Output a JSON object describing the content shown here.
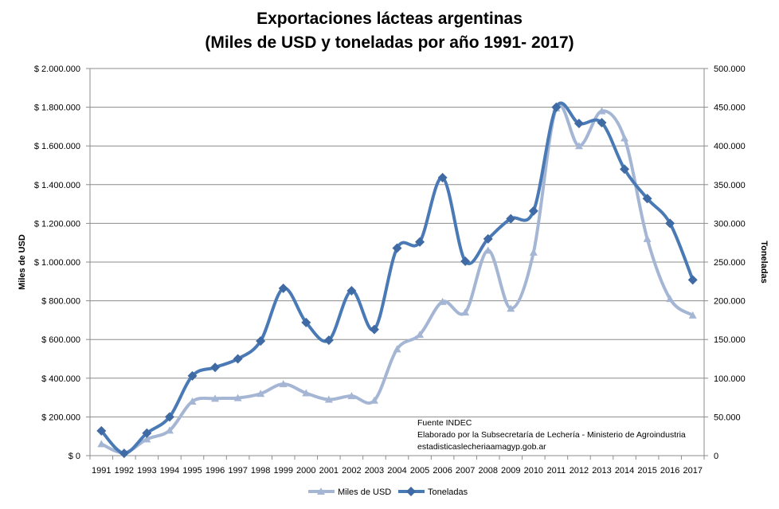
{
  "chart_data": {
    "type": "line",
    "title": "Exportaciones lácteas argentinas",
    "subtitle": "(Miles de USD y toneladas por año 1991- 2017)",
    "ylabel_left": "Miles de USD",
    "ylabel_right": "Toneladas",
    "categories": [
      "1991",
      "1992",
      "1993",
      "1994",
      "1995",
      "1996",
      "1997",
      "1998",
      "1999",
      "2000",
      "2001",
      "2002",
      "2003",
      "2004",
      "2005",
      "2006",
      "2007",
      "2008",
      "2009",
      "2010",
      "2011",
      "2012",
      "2013",
      "2014",
      "2015",
      "2016",
      "2017"
    ],
    "y_left_ticks": [
      "$ 0",
      "$ 200.000",
      "$ 400.000",
      "$ 600.000",
      "$ 800.000",
      "$ 1.000.000",
      "$ 1.200.000",
      "$ 1.400.000",
      "$ 1.600.000",
      "$ 1.800.000",
      "$ 2.000.000"
    ],
    "y_right_ticks": [
      "0",
      "50.000",
      "100.000",
      "150.000",
      "200.000",
      "250.000",
      "300.000",
      "350.000",
      "400.000",
      "450.000",
      "500.000"
    ],
    "ylim_left": [
      0,
      2000000
    ],
    "ylim_right": [
      0,
      500000
    ],
    "series": [
      {
        "name": "Miles de USD",
        "axis": "left",
        "color": "#a5b6d4",
        "values": [
          60000,
          15000,
          85000,
          130000,
          280000,
          295000,
          298000,
          320000,
          370000,
          323000,
          290000,
          308000,
          285000,
          550000,
          625000,
          795000,
          740000,
          1060000,
          760000,
          1050000,
          1795000,
          1600000,
          1780000,
          1640000,
          1120000,
          810000,
          725000
        ]
      },
      {
        "name": "Toneladas",
        "axis": "right",
        "color": "#4a7ab5",
        "values": [
          32000,
          3000,
          29000,
          50000,
          103000,
          114000,
          125000,
          148000,
          216000,
          172000,
          149000,
          213000,
          163000,
          268000,
          276000,
          359000,
          251000,
          280000,
          306000,
          316000,
          450000,
          429000,
          430000,
          370000,
          332000,
          300000,
          227000
        ]
      }
    ],
    "annotation": [
      "Fuente INDEC",
      "Elaborado por la Subsecretaría de Lechería - Ministerio de Agroindustria",
      "estadisticaslecheriaamagyp.gob.ar"
    ],
    "grid": true,
    "legend_position": "bottom"
  }
}
